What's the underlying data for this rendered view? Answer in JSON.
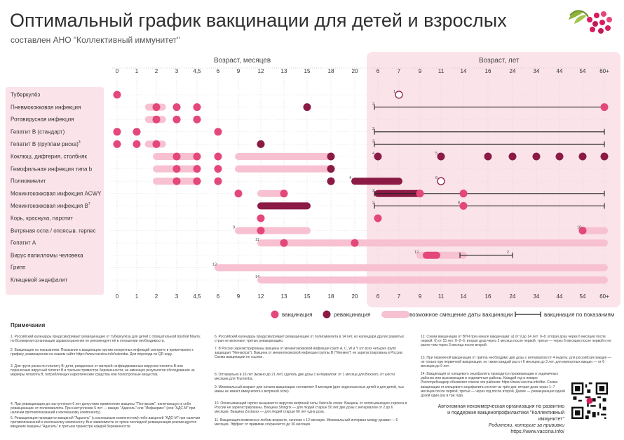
{
  "header": {
    "title": "Оптимальный график вакцинации для детей и взрослых",
    "subtitle": "составлен АНО \"Коллективный иммунитет\""
  },
  "axis": {
    "months_title": "Возраст, месяцев",
    "years_title": "Возраст, лет",
    "months": [
      "0",
      "1",
      "2",
      "3",
      "4,5",
      "6",
      "9",
      "12",
      "13",
      "15",
      "18",
      "20"
    ],
    "years": [
      "6",
      "7",
      "9",
      "11",
      "14",
      "16",
      "24",
      "34",
      "44",
      "54",
      "60+"
    ]
  },
  "colors": {
    "vaccination": "#e4477a",
    "revaccination": "#8b1a45",
    "shift": "#f7c1d2",
    "line": "#222222",
    "panel": "#fbe3ea"
  },
  "vaccines": [
    {
      "name": "Туберкулёз",
      "sup": ""
    },
    {
      "name": "Пневмококковая инфекция",
      "sup": ""
    },
    {
      "name": "Ротавирусная инфекция",
      "sup": ""
    },
    {
      "name": "Гепатит B (стандарт)",
      "sup": ""
    },
    {
      "name": "Гепатит B (группам риска)",
      "sup": "3"
    },
    {
      "name": "Коклюш, дифтерия, столбняк",
      "sup": ""
    },
    {
      "name": "Гемофильная инфекция типа b",
      "sup": ""
    },
    {
      "name": "Полиомиелит",
      "sup": ""
    },
    {
      "name": "Менингококковая инфекция ACWY",
      "sup": ""
    },
    {
      "name": "Менингококковая инфекция B",
      "sup": "7"
    },
    {
      "name": "Корь, краснуха, паротит",
      "sup": ""
    },
    {
      "name": "Ветряная оспа / опоясыв. герпес",
      "sup": ""
    },
    {
      "name": "Гепатит А",
      "sup": ""
    },
    {
      "name": "Вирус папилломы человека",
      "sup": ""
    },
    {
      "name": "Грипп",
      "sup": ""
    },
    {
      "name": "Клещевой энцефалит",
      "sup": ""
    }
  ],
  "schedule": [
    {
      "dots": [
        [
          0,
          "v"
        ]
      ],
      "open": [
        [
          13,
          "1"
        ]
      ],
      "bars": [],
      "lines": [],
      "notes": [
        [
          13,
          "1"
        ]
      ]
    },
    {
      "dots": [
        [
          2,
          "v"
        ],
        [
          3,
          "v"
        ],
        [
          4,
          "v"
        ],
        [
          9,
          "r"
        ],
        [
          22,
          "v"
        ]
      ],
      "open": [],
      "bars": [
        [
          1.6,
          2.3,
          "s"
        ]
      ],
      "lines": [
        [
          12,
          22
        ]
      ],
      "notes": [
        [
          12,
          "2"
        ]
      ]
    },
    {
      "dots": [
        [
          2,
          "v"
        ],
        [
          3,
          "v"
        ],
        [
          4,
          "v"
        ]
      ],
      "open": [],
      "bars": [
        [
          1.6,
          2.3,
          "s"
        ]
      ],
      "lines": [],
      "notes": []
    },
    {
      "dots": [
        [
          0,
          "v"
        ],
        [
          1,
          "v"
        ],
        [
          5,
          "v"
        ]
      ],
      "open": [],
      "bars": [],
      "lines": [
        [
          12,
          22
        ]
      ],
      "notes": [
        [
          12,
          "2"
        ]
      ]
    },
    {
      "dots": [
        [
          0,
          "v"
        ],
        [
          1,
          "v"
        ],
        [
          2,
          "v"
        ],
        [
          7,
          "r"
        ]
      ],
      "open": [],
      "bars": [
        [
          1.6,
          2.3,
          "s"
        ]
      ],
      "lines": [
        [
          12,
          22
        ]
      ],
      "notes": [
        [
          12,
          "2"
        ]
      ]
    },
    {
      "dots": [
        [
          3,
          "v"
        ],
        [
          4,
          "v"
        ],
        [
          5,
          "v"
        ],
        [
          10,
          "r"
        ],
        [
          12,
          "r"
        ],
        [
          15,
          "r"
        ],
        [
          17,
          "r"
        ],
        [
          18,
          "r"
        ],
        [
          19,
          "r"
        ],
        [
          20,
          "r"
        ],
        [
          21,
          "r"
        ],
        [
          22,
          "r"
        ]
      ],
      "open": [],
      "bars": [
        [
          2,
          4,
          "s"
        ],
        [
          6,
          10,
          "s"
        ]
      ],
      "lines": [],
      "notes": [
        [
          12,
          "4"
        ],
        [
          15,
          "5"
        ]
      ]
    },
    {
      "dots": [
        [
          3,
          "v"
        ],
        [
          4,
          "v"
        ],
        [
          5,
          "v"
        ],
        [
          10,
          "r"
        ]
      ],
      "open": [],
      "bars": [
        [
          2,
          4,
          "s"
        ],
        [
          6,
          10,
          "s"
        ]
      ],
      "lines": [],
      "notes": []
    },
    {
      "dots": [
        [
          3,
          "v"
        ],
        [
          4,
          "v"
        ],
        [
          5,
          "v"
        ],
        [
          10,
          "r"
        ]
      ],
      "open": [
        [
          15,
          "6"
        ]
      ],
      "bars": [
        [
          2,
          4,
          "s"
        ],
        [
          11,
          13,
          "r"
        ]
      ],
      "lines": [],
      "notes": [
        [
          11,
          "4"
        ],
        [
          15,
          "6"
        ]
      ]
    },
    {
      "dots": [
        [
          6,
          "v"
        ],
        [
          8,
          "v"
        ],
        [
          14,
          "v"
        ],
        [
          16,
          "v"
        ]
      ],
      "open": [],
      "bars": [
        [
          7,
          8,
          "s"
        ],
        [
          12,
          14,
          "r"
        ]
      ],
      "lines": [
        [
          12,
          22
        ]
      ],
      "notes": [
        [
          12,
          "2"
        ]
      ]
    },
    {
      "dots": [
        [
          16,
          "v"
        ]
      ],
      "open": [],
      "bars": [
        [
          7,
          9,
          "r"
        ]
      ],
      "lines": [
        [
          12,
          22
        ]
      ],
      "notes": [
        [
          12,
          "2"
        ],
        [
          16,
          "8"
        ]
      ]
    },
    {
      "dots": [
        [
          7,
          "v"
        ],
        [
          12,
          "v"
        ]
      ],
      "open": [],
      "bars": [],
      "lines": [],
      "notes": []
    },
    {
      "dots": [
        [
          7,
          "v"
        ],
        [
          21,
          "v"
        ]
      ],
      "open": [],
      "bars": [
        [
          6,
          9,
          "s"
        ],
        [
          21,
          22,
          "s"
        ]
      ],
      "lines": [],
      "notes": [
        [
          6,
          "9"
        ],
        [
          21,
          "10"
        ]
      ]
    },
    {
      "dots": [
        [
          8,
          "v"
        ],
        [
          11,
          "v"
        ]
      ],
      "open": [],
      "bars": [
        [
          7,
          22,
          "s"
        ]
      ],
      "lines": [],
      "notes": [
        [
          7,
          "11"
        ]
      ]
    },
    {
      "dots": [],
      "open": [],
      "bars": [
        [
          14,
          16,
          "s"
        ],
        [
          14.3,
          14.8,
          "v"
        ]
      ],
      "lines": [
        [
          16,
          18
        ]
      ],
      "notes": [
        [
          14,
          "12"
        ],
        [
          18,
          "2"
        ]
      ]
    },
    {
      "dots": [],
      "open": [],
      "bars": [
        [
          5,
          22,
          "s"
        ]
      ],
      "lines": [],
      "notes": [
        [
          5,
          "13"
        ]
      ]
    },
    {
      "dots": [],
      "open": [],
      "bars": [
        [
          7,
          22,
          "s"
        ]
      ],
      "lines": [],
      "notes": [
        [
          7,
          "14"
        ]
      ]
    }
  ],
  "legend": {
    "vaccination": "вакцинация",
    "revaccination": "ревакцинация",
    "shift": "возможное смещение даты вакцинации",
    "indication": "вакцинация по показаниям"
  },
  "notes": {
    "title": "Примечания",
    "items": [
      "1. Российский календарь предусматривает ревакцинацию от туберкулёза для детей с отрицательной пробой Манту, но Всемирная организация здравоохранения не рекомендует её в отношении необходимости.",
      "2. Вакцинация по показаниям. Показания к вакцинации против конкретных инфекций смотрите в примечаниях к графику, размещенном на нашем сайте https://www.vaccina.info/calendar. Для перехода по QR-коду.",
      "3. Для групп риска по гепатиту B: дети, рожденные от матерей: инфицированных вирусом гепатита В или перенесших вирусный гепатит В в третьем триместре беременности; не имеющих результатов обследования на маркеры гепатита В; потребляющих наркотические средства или психотропные вещества.",
      "4. При ревакцинации до наступления 6 лет допустимо применение вакцины \"Пентаксим\", включающую в себя ревакцинацию от полиомиелита. При наступлении 6 лет — вакцин \"Адасель\" или \"Инфанрикс\" (или \"АДС-М\" при наличии противопоказаний к коклюшному компоненту).",
      "5. Ревакцинация проводится вакциной \"Адасель\" (с коклюшным компонентом) либо вакциной \"АДС-М\" при наличии противопоказаний к коклюшному компоненту. Вне зависимости от срока последней ревакцинации рекомендуется введение вакцины \"Адасель\" в третьем триместре каждой беременности.",
      "6. Российский календарь предусматривает ревакцинацию от полиомиелита в 14 лет, но календари других развитых стран не включают третью ревакцинацию.",
      "7. В России зарегистрированы вакцины от менингококковой инфекции групп A, C, W и Y (от всех четырех групп защищает \"Менактра\"). Вакцина от менингококковой инфекции группы В (\"Менвео\") не зарегистрирована в России. Схема вакцинации по ссылке.",
      "8. Оптимально в 16 лет (можно до 21 лет) сделать две дозы с интервалом: от 1 месяца для Bexsero, от шести месяцев для Trumenba.",
      "9. Минимальный возраст для начала вакцинации составляет 9 месяцев (для недоношенных детей и для детей, чьи мамы не имеют иммунитета к ветряной оспе).",
      "10. Опоясывающий герпес вызывается вирусом ветряной оспы Varicella zoster. Вакцины от опоясывающего герпеса в России не зарегистрированы. Вакцина Shingrix — для людей старше 50 лет две дозы с интервалом от 2 до 6 месяцев. Вакцина Zostavax — для людей старше 60 лет одна доза.",
      "11. Вакцинация возможна в любом возрасте, начиная с 12 месяцев. Минимальный интервал между дозами — 6 месяцев. Эффект от прививки сохраняется до 36 месяцев.",
      "12. Схема вакцинации от ВПЧ при начале вакцинации: а) от 9 до 14 лет: 0–6: вторая доза через 6 месяцев после первой; б) от 15 лет: 0–2–6: вторая доза через 2 месяца после первой, третья — через 6 месяцев после первой и не ранее чем через 3 месяца после второй.",
      "13. При первичной вакцинации от гриппа необходимо две дозы с интервалом от 4 недель: для российских вакцин — не только при первичной вакцинации, но также каждый раз от 6 месяцев до 3 лет, для импортных вакцин — от 6 месяцев до 9 лет.",
      "14. Вакцинация от клещевого энцефалита проводится проживающим в эндемичных районах или выезжающим в эндемичные районы. Каждый год в январе Роспотребнадзор обновляет список эти районов: https://www.vaccina.info/tbe. Схема вакцинации от клещевого энцефалита состоит из трёх доз: вторая доза через 1–7 месяцев после первой, третья — через год после второй. Далее — ревакцинация одной дозой один раз в три года."
    ]
  },
  "footer": {
    "org_line1": "Автономная некоммерческая организация по развитию",
    "org_line2": "и поддержке вакцинопрофилактики \"Коллективный иммунитет\"",
    "slogan": "Родители, которые за прививки",
    "url": "https://www.vaccina.info/"
  }
}
